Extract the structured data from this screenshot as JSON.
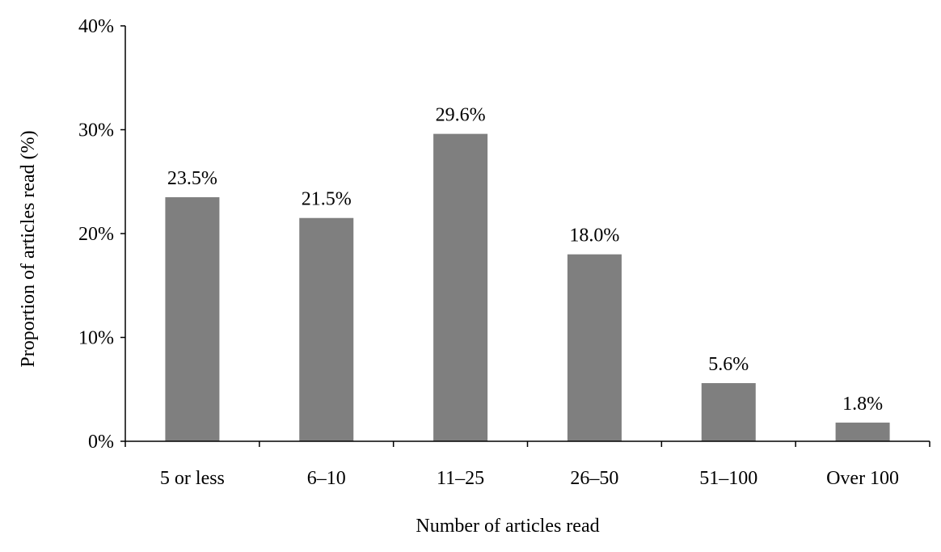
{
  "chart_data": {
    "type": "bar",
    "categories": [
      "5 or less",
      "6–10",
      "11–25",
      "26–50",
      "51–100",
      "Over 100"
    ],
    "values": [
      23.5,
      21.5,
      29.6,
      18.0,
      5.6,
      1.8
    ],
    "data_labels": [
      "23.5%",
      "21.5%",
      "29.6%",
      "18.0%",
      "5.6%",
      "1.8%"
    ],
    "title": "",
    "xlabel": "Number of articles read",
    "ylabel": "Proportion of articles read (%)",
    "ylim": [
      0,
      40
    ],
    "yticks": [
      0,
      10,
      20,
      30,
      40
    ],
    "ytick_labels": [
      "0%",
      "10%",
      "20%",
      "30%",
      "40%"
    ],
    "grid": false,
    "legend": "none",
    "bar_color": "#7f7f7f"
  }
}
